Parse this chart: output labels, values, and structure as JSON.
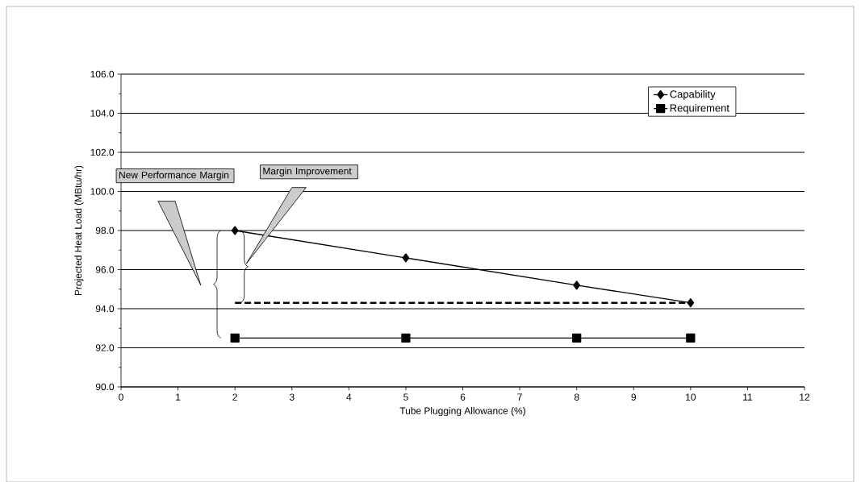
{
  "chart_data": {
    "type": "line",
    "xlabel": "Tube Plugging Allowance (%)",
    "ylabel": "Projected Heat Load (MBtu/hr)",
    "xlim": [
      0,
      12
    ],
    "xticks": [
      0,
      1,
      2,
      3,
      4,
      5,
      6,
      7,
      8,
      9,
      10,
      11,
      12
    ],
    "ylim": [
      90,
      106
    ],
    "yticks": [
      {
        "value": 90,
        "label": "90.0"
      },
      {
        "value": 92,
        "label": "92.0"
      },
      {
        "value": 94,
        "label": "94.0"
      },
      {
        "value": 96,
        "label": "96.0"
      },
      {
        "value": 98,
        "label": "98.0"
      },
      {
        "value": 100,
        "label": "100.0"
      },
      {
        "value": 102,
        "label": "102.0"
      },
      {
        "value": 104,
        "label": "104.0"
      },
      {
        "value": 106,
        "label": "106.0"
      }
    ],
    "grid": "y",
    "legend": "top right",
    "series": [
      {
        "name": "Capability",
        "color": "#000000",
        "marker": "diamond",
        "line_style": "solid",
        "x": [
          2,
          5,
          8,
          10
        ],
        "values": [
          98.0,
          96.6,
          95.2,
          94.3
        ]
      },
      {
        "name": "Requirement",
        "color": "#000000",
        "marker": "square",
        "line_style": "solid",
        "x": [
          2,
          5,
          8,
          10
        ],
        "values": [
          92.5,
          92.5,
          92.5,
          92.5
        ]
      },
      {
        "color": "#000000",
        "marker": "none",
        "line_style": "dashed",
        "x": [
          2,
          10
        ],
        "values": [
          94.3,
          94.3
        ]
      }
    ],
    "annotations": [
      "New Performance Margin",
      "Margin Improvement"
    ]
  }
}
